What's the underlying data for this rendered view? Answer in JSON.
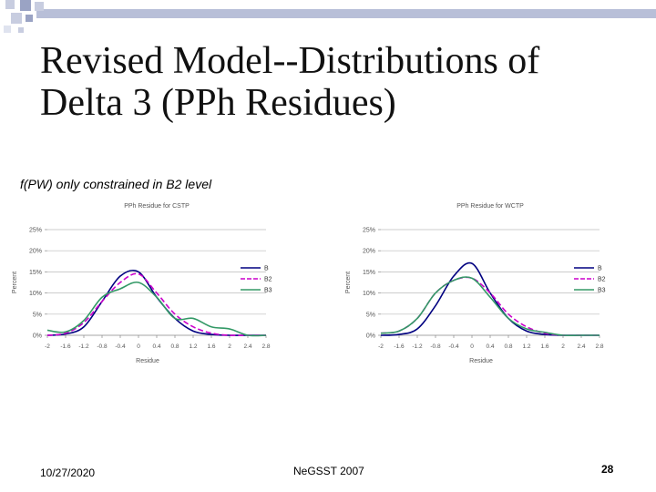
{
  "slide": {
    "title_lines": [
      "Revised Model--Distributions of",
      "Delta 3 (PPh Residues)"
    ],
    "subtitle": "f(PW) only constrained in B2 level",
    "footer_date": "10/27/2020",
    "footer_center": "NeGSST 2007",
    "page_number": "28"
  },
  "colors": {
    "decor_square_light": "#c8cde0",
    "decor_square_dark": "#9aa3c4",
    "decor_bar": "#b8bfd8",
    "series_B": "#000080",
    "series_B2": "#cc00cc",
    "series_B3": "#339966"
  },
  "chart_data": [
    {
      "type": "line",
      "title": "PPh Residue for CSTP",
      "xlabel": "Residue",
      "ylabel": "Percent",
      "x": [
        -2,
        -1.6,
        -1.2,
        -0.8,
        -0.4,
        0,
        0.4,
        0.8,
        1.2,
        1.6,
        2,
        2.4,
        2.8
      ],
      "x_tick_labels": [
        "-2",
        "-1.6",
        "-1.2",
        "-0.8",
        "-0.4",
        "0",
        "0.4",
        "0.8",
        "1.2",
        "1.6",
        "2",
        "2.4",
        "2.8"
      ],
      "ylim": [
        0,
        25
      ],
      "y_ticks": [
        0,
        5,
        10,
        15,
        20,
        25
      ],
      "y_tick_labels": [
        "0%",
        "5%",
        "10%",
        "15%",
        "20%",
        "25%"
      ],
      "legend_position": "right",
      "series": [
        {
          "name": "B",
          "color": "#000080",
          "dash": "solid",
          "values": [
            0,
            0.3,
            2,
            8,
            14,
            15,
            9,
            4,
            1,
            0.2,
            0,
            0,
            0
          ]
        },
        {
          "name": "B2",
          "color": "#cc00cc",
          "dash": "dashed",
          "values": [
            0,
            0.5,
            3,
            8,
            12.5,
            14.5,
            10,
            5,
            2,
            0.5,
            0,
            0,
            0
          ]
        },
        {
          "name": "B3",
          "color": "#339966",
          "dash": "solid",
          "values": [
            1.2,
            0.8,
            3.5,
            9,
            11,
            12.5,
            9,
            4,
            4,
            2,
            1.5,
            0,
            0
          ]
        }
      ]
    },
    {
      "type": "line",
      "title": "PPh Residue for WCTP",
      "xlabel": "Residue",
      "ylabel": "Percent",
      "x": [
        -2,
        -1.6,
        -1.2,
        -0.8,
        -0.4,
        0,
        0.4,
        0.8,
        1.2,
        1.6,
        2,
        2.4,
        2.8
      ],
      "x_tick_labels": [
        "-2",
        "-1.6",
        "-1.2",
        "-0.8",
        "-0.4",
        "0",
        "0.4",
        "0.8",
        "1.2",
        "1.6",
        "2",
        "2.4",
        "2.8"
      ],
      "ylim": [
        0,
        25
      ],
      "y_ticks": [
        0,
        5,
        10,
        15,
        20,
        25
      ],
      "y_tick_labels": [
        "0%",
        "5%",
        "10%",
        "15%",
        "20%",
        "25%"
      ],
      "legend_position": "right",
      "series": [
        {
          "name": "B",
          "color": "#000080",
          "dash": "solid",
          "values": [
            0,
            0.2,
            1.5,
            7,
            14,
            17,
            10,
            4,
            1,
            0.2,
            0,
            0,
            0
          ]
        },
        {
          "name": "B2",
          "color": "#cc00cc",
          "dash": "dashed",
          "values": [
            0.5,
            1,
            4,
            10,
            13,
            13.5,
            10,
            5,
            2,
            0.5,
            0,
            0,
            0
          ]
        },
        {
          "name": "B3",
          "color": "#339966",
          "dash": "solid",
          "values": [
            0.5,
            1,
            4,
            10,
            13,
            13.5,
            9,
            4,
            1.5,
            0.7,
            0,
            0,
            0
          ]
        }
      ]
    }
  ]
}
